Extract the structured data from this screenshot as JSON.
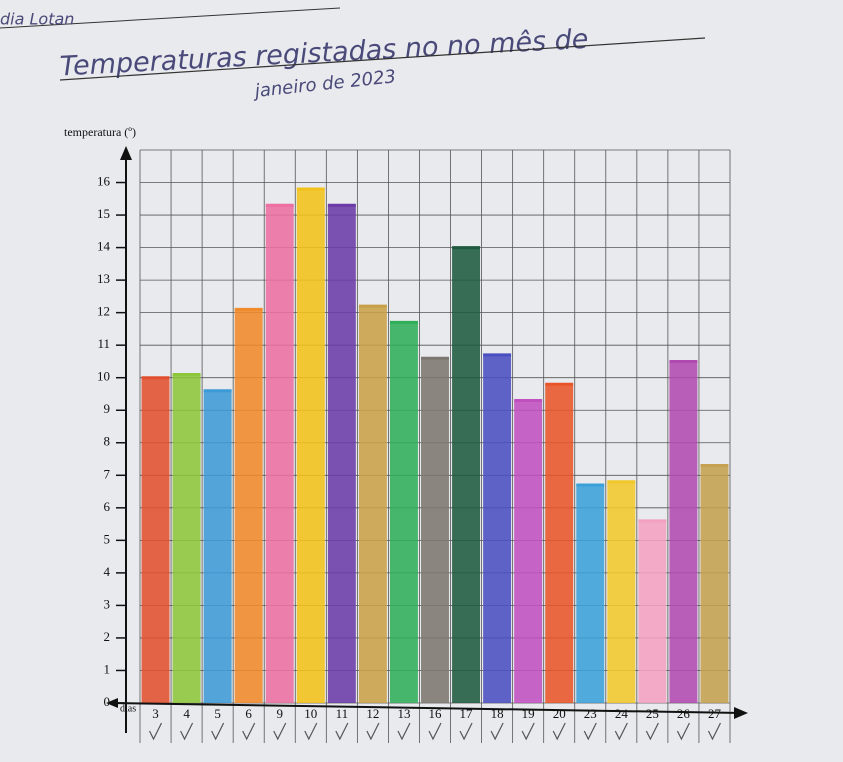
{
  "chart_data": {
    "type": "bar",
    "author": "dia Lotan",
    "title": "Temperaturas registadas no no mês de",
    "subtitle": "janeiro de 2023",
    "y_label": "temperatura (º)",
    "x_label": "dias",
    "categories": [
      "3",
      "4",
      "5",
      "6",
      "9",
      "10",
      "11",
      "12",
      "13",
      "16",
      "17",
      "18",
      "19",
      "20",
      "23",
      "24",
      "25",
      "26",
      "27"
    ],
    "values": [
      10,
      10.1,
      9.6,
      12.1,
      15.3,
      15.8,
      15.3,
      12.2,
      11.7,
      10.6,
      14,
      10.7,
      9.3,
      9.8,
      6.7,
      6.8,
      5.6,
      10.5,
      7.3
    ],
    "colors": [
      "#e0502e",
      "#8cc63a",
      "#3c9ad6",
      "#f08a2a",
      "#ec6ea2",
      "#f2c21a",
      "#6a3aa8",
      "#c9a048",
      "#2fae5a",
      "#7c7870",
      "#1e5a40",
      "#4a4fc0",
      "#c050c0",
      "#e8552a",
      "#3aa0d8",
      "#f0c82a",
      "#f2a0c0",
      "#b04ab0",
      "#c4a050"
    ],
    "ylim": [
      0,
      17
    ],
    "yticks": [
      0,
      1,
      2,
      3,
      4,
      5,
      6,
      7,
      8,
      9,
      10,
      11,
      12,
      13,
      14,
      15,
      16
    ],
    "grid": true
  }
}
